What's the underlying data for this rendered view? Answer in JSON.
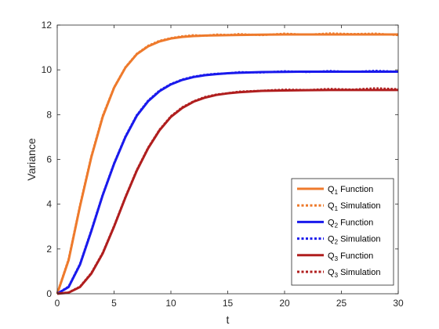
{
  "chart_data": {
    "type": "line",
    "title": "",
    "xlabel": "t",
    "ylabel": "Variance",
    "xlim": [
      0,
      30
    ],
    "ylim": [
      0,
      12
    ],
    "xticks": [
      0,
      5,
      10,
      15,
      20,
      25,
      30
    ],
    "yticks": [
      0,
      2,
      4,
      6,
      8,
      10,
      12
    ],
    "grid": false,
    "legend_position": "bottom-right",
    "series": [
      {
        "base": "Q",
        "sub": "1",
        "suffix": "Function",
        "style": "solid",
        "color": "#ee7a2c",
        "x": [
          0,
          1,
          2,
          3,
          4,
          5,
          6,
          7,
          8,
          9,
          10,
          11,
          12,
          13,
          14,
          15,
          16,
          18,
          20,
          22,
          24,
          26,
          28,
          30
        ],
        "y": [
          0,
          1.5,
          3.9,
          6.1,
          7.9,
          9.2,
          10.1,
          10.7,
          11.05,
          11.27,
          11.4,
          11.47,
          11.51,
          11.53,
          11.54,
          11.55,
          11.56,
          11.57,
          11.58,
          11.58,
          11.58,
          11.58,
          11.58,
          11.58
        ]
      },
      {
        "base": "Q",
        "sub": "1",
        "suffix": "Simulation",
        "style": "dotted",
        "color": "#ee7a2c",
        "x": [
          0,
          1,
          2,
          3,
          4,
          5,
          6,
          7,
          8,
          9,
          10,
          11,
          12,
          13,
          14,
          15,
          16,
          18,
          20,
          22,
          24,
          26,
          28,
          30
        ],
        "y": [
          0.02,
          1.55,
          3.95,
          6.15,
          7.95,
          9.22,
          10.12,
          10.72,
          11.08,
          11.3,
          11.42,
          11.5,
          11.55,
          11.52,
          11.58,
          11.56,
          11.6,
          11.55,
          11.62,
          11.57,
          11.63,
          11.6,
          11.62,
          11.55
        ]
      },
      {
        "base": "Q",
        "sub": "2",
        "suffix": "Function",
        "style": "solid",
        "color": "#1a1aec",
        "x": [
          0,
          1,
          2,
          3,
          4,
          5,
          6,
          7,
          8,
          9,
          10,
          11,
          12,
          13,
          14,
          15,
          16,
          18,
          20,
          22,
          24,
          26,
          28,
          30
        ],
        "y": [
          0,
          0.3,
          1.3,
          2.8,
          4.4,
          5.8,
          7.0,
          7.95,
          8.6,
          9.05,
          9.35,
          9.55,
          9.68,
          9.76,
          9.81,
          9.85,
          9.87,
          9.9,
          9.91,
          9.92,
          9.92,
          9.92,
          9.92,
          9.92
        ]
      },
      {
        "base": "Q",
        "sub": "2",
        "suffix": "Simulation",
        "style": "dotted",
        "color": "#1a1aec",
        "x": [
          0,
          1,
          2,
          3,
          4,
          5,
          6,
          7,
          8,
          9,
          10,
          11,
          12,
          13,
          14,
          15,
          16,
          18,
          20,
          22,
          24,
          26,
          28,
          30
        ],
        "y": [
          0.01,
          0.32,
          1.33,
          2.84,
          4.43,
          5.83,
          7.03,
          7.98,
          8.63,
          9.08,
          9.37,
          9.57,
          9.7,
          9.78,
          9.83,
          9.84,
          9.9,
          9.88,
          9.94,
          9.9,
          9.95,
          9.91,
          9.96,
          9.92
        ]
      },
      {
        "base": "Q",
        "sub": "3",
        "suffix": "Function",
        "style": "solid",
        "color": "#b01e1e",
        "x": [
          0,
          1,
          2,
          3,
          4,
          5,
          6,
          7,
          8,
          9,
          10,
          11,
          12,
          13,
          14,
          15,
          16,
          18,
          20,
          22,
          24,
          26,
          28,
          30
        ],
        "y": [
          0,
          0.05,
          0.3,
          0.9,
          1.8,
          3.0,
          4.3,
          5.5,
          6.5,
          7.3,
          7.9,
          8.3,
          8.58,
          8.76,
          8.88,
          8.95,
          9.0,
          9.06,
          9.08,
          9.09,
          9.1,
          9.1,
          9.1,
          9.1
        ]
      },
      {
        "base": "Q",
        "sub": "3",
        "suffix": "Simulation",
        "style": "dotted",
        "color": "#b01e1e",
        "x": [
          0,
          1,
          2,
          3,
          4,
          5,
          6,
          7,
          8,
          9,
          10,
          11,
          12,
          13,
          14,
          15,
          16,
          18,
          20,
          22,
          24,
          26,
          28,
          30
        ],
        "y": [
          0.01,
          0.06,
          0.32,
          0.93,
          1.83,
          3.03,
          4.33,
          5.53,
          6.53,
          7.33,
          7.93,
          8.33,
          8.6,
          8.79,
          8.9,
          8.96,
          9.03,
          9.07,
          9.12,
          9.1,
          9.15,
          9.12,
          9.18,
          9.14
        ]
      }
    ]
  }
}
